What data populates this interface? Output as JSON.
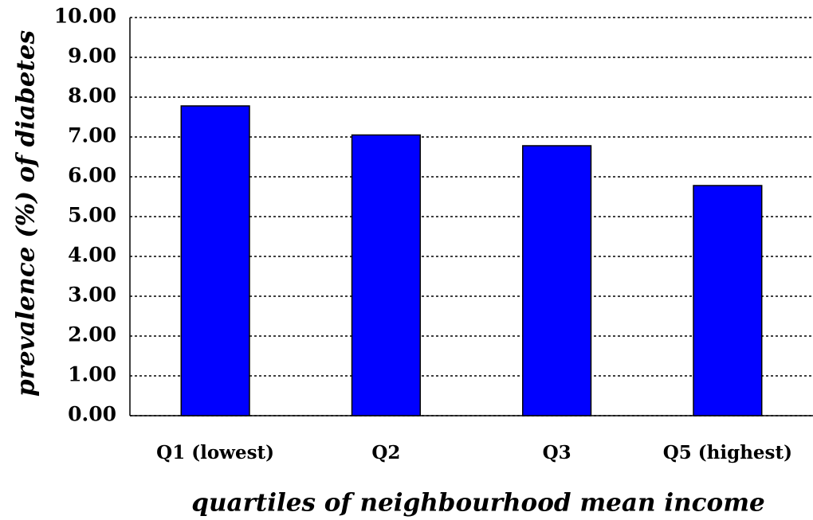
{
  "chart_data": {
    "type": "bar",
    "y_label": "prevalence (%) of diabetes",
    "x_label": "quartiles of neighbourhood mean income",
    "categories": [
      "Q1 (lowest)",
      "Q2",
      "Q3",
      "Q5 (highest)"
    ],
    "values": [
      7.78,
      7.05,
      6.78,
      5.78
    ],
    "color": "#0000ff",
    "ylim": [
      0,
      10
    ],
    "yticks": [
      {
        "value": 0,
        "label": "0.00"
      },
      {
        "value": 1,
        "label": "1.00"
      },
      {
        "value": 2,
        "label": "2.00"
      },
      {
        "value": 3,
        "label": "3.00"
      },
      {
        "value": 4,
        "label": "4.00"
      },
      {
        "value": 5,
        "label": "5.00"
      },
      {
        "value": 6,
        "label": "6.00"
      },
      {
        "value": 7,
        "label": "7.00"
      },
      {
        "value": 8,
        "label": "8.00"
      },
      {
        "value": 9,
        "label": "9.00"
      },
      {
        "value": 10,
        "label": "10.00"
      }
    ],
    "grid": true
  }
}
